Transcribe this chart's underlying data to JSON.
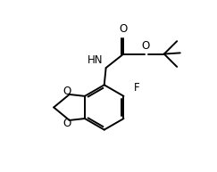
{
  "background_color": "#ffffff",
  "line_color": "#000000",
  "line_width": 1.4,
  "font_size": 8.5,
  "figsize": [
    2.43,
    1.93
  ],
  "dpi": 100,
  "xlim": [
    0,
    10
  ],
  "ylim": [
    0,
    8
  ]
}
